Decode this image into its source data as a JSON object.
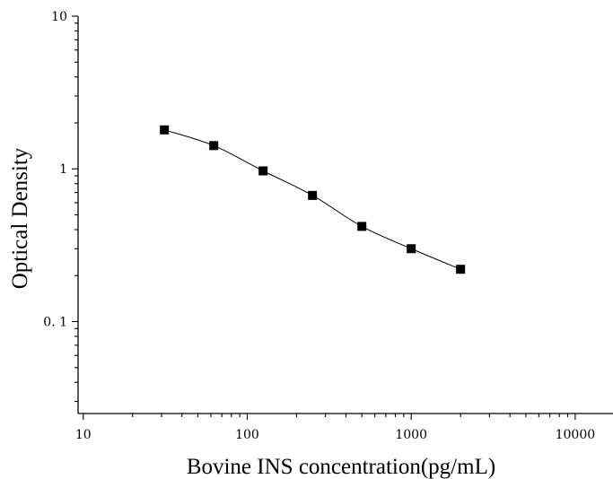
{
  "chart_data": {
    "type": "scatter",
    "title": "",
    "xlabel": "Bovine INS concentration(pg/mL)",
    "ylabel": "Optical Density",
    "x_scale": "log",
    "y_scale": "log",
    "xlim": [
      9.3,
      17000
    ],
    "ylim": [
      0.025,
      10
    ],
    "x_ticks": [
      {
        "value": 10,
        "label": "10"
      },
      {
        "value": 100,
        "label": "100"
      },
      {
        "value": 1000,
        "label": "1000"
      },
      {
        "value": 10000,
        "label": "10000"
      }
    ],
    "y_ticks": [
      {
        "value": 0.1,
        "label": "0. 1"
      },
      {
        "value": 1,
        "label": "1"
      },
      {
        "value": 10,
        "label": "10"
      }
    ],
    "grid": false,
    "legend": "none",
    "series": [
      {
        "marker": "square",
        "color": "#000000",
        "points": [
          {
            "x": 31.25,
            "y": 1.8
          },
          {
            "x": 62.5,
            "y": 1.42
          },
          {
            "x": 125,
            "y": 0.97
          },
          {
            "x": 250,
            "y": 0.67
          },
          {
            "x": 500,
            "y": 0.42
          },
          {
            "x": 1000,
            "y": 0.3
          },
          {
            "x": 2000,
            "y": 0.22
          }
        ],
        "fit_curve": true
      }
    ]
  }
}
